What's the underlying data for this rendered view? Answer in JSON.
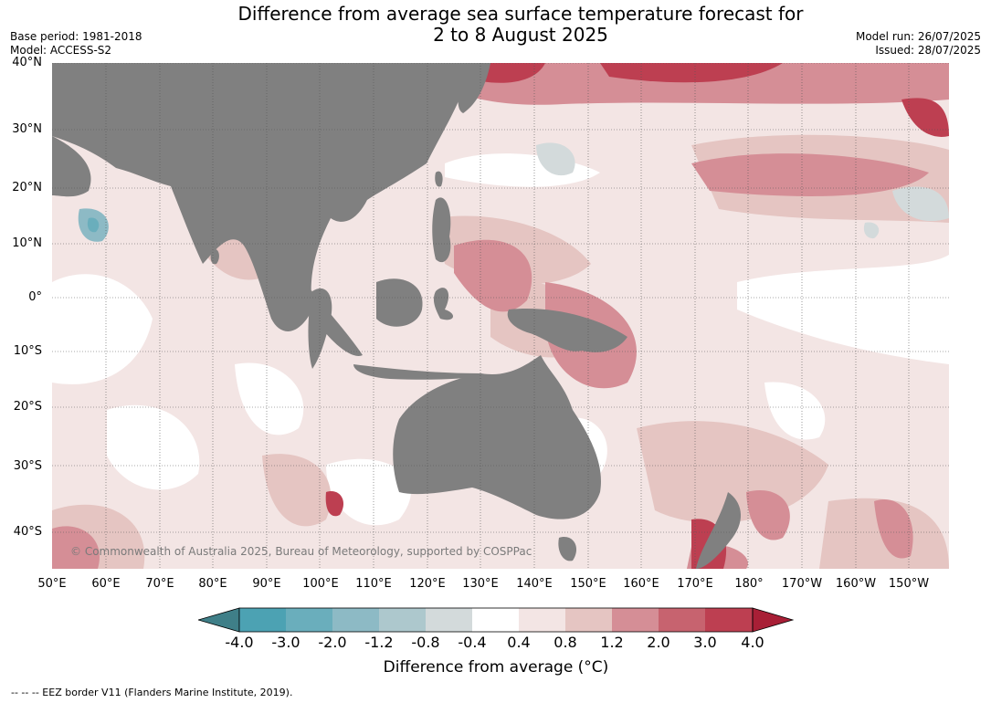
{
  "header": {
    "title_line1": "Difference from average sea surface temperature forecast for",
    "title_line2": "2 to 8 August 2025",
    "base_period": "Base period: 1981-2018",
    "model": "Model: ACCESS-S2",
    "model_run": "Model run: 26/07/2025",
    "issued": "Issued: 28/07/2025"
  },
  "map": {
    "lat_labels": [
      "40°N",
      "30°N",
      "20°N",
      "10°N",
      "0°",
      "10°S",
      "20°S",
      "30°S",
      "40°S"
    ],
    "lon_labels": [
      "50°E",
      "60°E",
      "70°E",
      "80°E",
      "90°E",
      "100°E",
      "110°E",
      "120°E",
      "130°E",
      "140°E",
      "150°E",
      "160°E",
      "170°E",
      "180°",
      "170°W",
      "160°W",
      "150°W"
    ],
    "copyright": "© Commonwealth of Australia 2025, Bureau of Meteorology, supported by COSPPac",
    "land_color": "#808080",
    "ocean_color": "#ffffff"
  },
  "colorbar": {
    "ticks": [
      "-4.0",
      "-3.0",
      "-2.0",
      "-1.2",
      "-0.8",
      "-0.4",
      "0.4",
      "0.8",
      "1.2",
      "2.0",
      "3.0",
      "4.0"
    ],
    "colors": [
      "#3f7f88",
      "#4ca2b3",
      "#6aaebc",
      "#8dbac5",
      "#adc8cd",
      "#d3dadb",
      "#ffffff",
      "#f3e5e4",
      "#e5c5c2",
      "#d58e96",
      "#c7636f",
      "#bd3f51",
      "#a81f36"
    ],
    "label": "Difference from average (°C)"
  },
  "footnote": "--  --  -- EEZ border V11 (Flanders Marine Institute, 2019)."
}
